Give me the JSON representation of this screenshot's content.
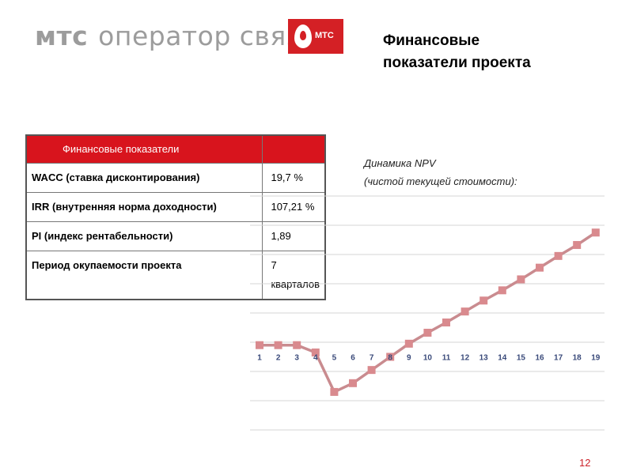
{
  "brand": {
    "bold": "мтс",
    "rest": "оператор связи",
    "logo_text": "МТС"
  },
  "title": [
    "Финансовые",
    "показатели проекта"
  ],
  "table": {
    "headers": [
      "Финансовые показатели",
      ""
    ],
    "rows": [
      {
        "name": "WACC (ставка дисконтирования)",
        "value": "19,7 %"
      },
      {
        "name": "IRR (внутренняя норма доходности)",
        "value": "107,21 %"
      },
      {
        "name": "PI (индекс рентабельности)",
        "value": "1,89"
      },
      {
        "name": "Период окупаемости проекта",
        "value": "7 кварталов"
      }
    ]
  },
  "chart_caption": [
    "Динамика NPV",
    "(чистой текущей стоимости):"
  ],
  "chart_data": {
    "type": "line",
    "categories": [
      "1",
      "2",
      "3",
      "4",
      "5",
      "6",
      "7",
      "8",
      "9",
      "10",
      "11",
      "12",
      "13",
      "14",
      "15",
      "16",
      "17",
      "18",
      "19"
    ],
    "series": [
      {
        "values": [
          0,
          0,
          0,
          -0.5,
          -3.2,
          -2.6,
          -1.7,
          -0.8,
          0.1,
          0.85,
          1.55,
          2.3,
          3.05,
          3.75,
          4.5,
          5.3,
          6.1,
          6.85,
          7.7
        ]
      }
    ],
    "ylim": [
      -5.8,
      10.2
    ],
    "grid": true,
    "line_color": "#c98b8f",
    "marker_color": "#d98a8e"
  },
  "page_number": "12"
}
